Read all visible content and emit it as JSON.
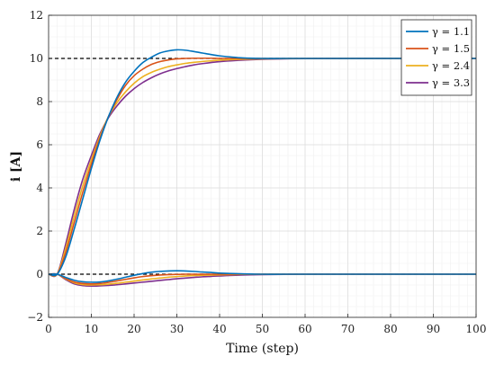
{
  "chart_data": {
    "type": "line",
    "xlabel": "Time (step)",
    "ylabel": "i [A]",
    "xlim": [
      0,
      100
    ],
    "ylim": [
      -2,
      12
    ],
    "xticks": [
      0,
      10,
      20,
      30,
      40,
      50,
      60,
      70,
      80,
      90,
      100
    ],
    "yticks": [
      -2,
      0,
      2,
      4,
      6,
      8,
      10,
      12
    ],
    "grid": true,
    "minor_grid": true,
    "legend_position": "top-right",
    "reference_lines": [
      {
        "y": 10,
        "style": "dashed",
        "color": "#000000"
      },
      {
        "y": 0,
        "style": "dashed",
        "color": "#000000"
      }
    ],
    "series": [
      {
        "name": "γ = 1.1",
        "color": "#0072BD",
        "upper": {
          "x": [
            0,
            2,
            4,
            6,
            8,
            10,
            12,
            14,
            16,
            18,
            20,
            22,
            24,
            26,
            28,
            30,
            32,
            34,
            36,
            38,
            40,
            45,
            50,
            55,
            60,
            70,
            80,
            90,
            100
          ],
          "y": [
            0,
            0,
            0.8,
            2.1,
            3.5,
            4.9,
            6.2,
            7.3,
            8.2,
            8.9,
            9.4,
            9.8,
            10.05,
            10.25,
            10.35,
            10.4,
            10.38,
            10.32,
            10.25,
            10.18,
            10.12,
            10.03,
            10.0,
            10.0,
            10.0,
            10.0,
            10.0,
            10.0,
            10.0
          ]
        },
        "lower": {
          "x": [
            0,
            2,
            4,
            6,
            8,
            10,
            12,
            14,
            16,
            18,
            20,
            22,
            24,
            26,
            28,
            30,
            32,
            34,
            36,
            38,
            40,
            45,
            50,
            55,
            60,
            70,
            80,
            90,
            100
          ],
          "y": [
            0,
            0,
            -0.15,
            -0.28,
            -0.35,
            -0.37,
            -0.36,
            -0.31,
            -0.23,
            -0.14,
            -0.05,
            0.03,
            0.09,
            0.13,
            0.15,
            0.16,
            0.15,
            0.13,
            0.1,
            0.08,
            0.05,
            0.02,
            0.0,
            0.0,
            0.0,
            0.0,
            0.0,
            0.0,
            0.0
          ]
        }
      },
      {
        "name": "γ = 1.5",
        "color": "#D95319",
        "upper": {
          "x": [
            0,
            2,
            4,
            6,
            8,
            10,
            12,
            14,
            16,
            18,
            20,
            22,
            24,
            26,
            28,
            30,
            32,
            34,
            36,
            38,
            40,
            45,
            50,
            55,
            60,
            70,
            80,
            90,
            100
          ],
          "y": [
            0,
            0,
            1.0,
            2.4,
            3.8,
            5.1,
            6.3,
            7.3,
            8.1,
            8.75,
            9.2,
            9.5,
            9.72,
            9.85,
            9.93,
            9.98,
            10.0,
            10.01,
            10.01,
            10.01,
            10.0,
            10.0,
            10.0,
            10.0,
            10.0,
            10.0,
            10.0,
            10.0,
            10.0
          ]
        },
        "lower": {
          "x": [
            0,
            2,
            4,
            6,
            8,
            10,
            12,
            14,
            16,
            18,
            20,
            22,
            24,
            26,
            28,
            30,
            32,
            34,
            36,
            38,
            40,
            45,
            50,
            55,
            60,
            70,
            80,
            90,
            100
          ],
          "y": [
            0,
            0,
            -0.2,
            -0.36,
            -0.43,
            -0.45,
            -0.43,
            -0.38,
            -0.31,
            -0.24,
            -0.17,
            -0.11,
            -0.07,
            -0.04,
            -0.02,
            -0.01,
            0.0,
            0.0,
            0.0,
            0.0,
            0.0,
            0.0,
            0.0,
            0.0,
            0.0,
            0.0,
            0.0,
            0.0,
            0.0
          ]
        }
      },
      {
        "name": "γ = 2.4",
        "color": "#EDB120",
        "upper": {
          "x": [
            0,
            2,
            4,
            6,
            8,
            10,
            12,
            14,
            16,
            18,
            20,
            22,
            24,
            26,
            28,
            30,
            32,
            34,
            36,
            38,
            40,
            45,
            50,
            55,
            60,
            70,
            80,
            90,
            100
          ],
          "y": [
            0,
            0,
            1.2,
            2.7,
            4.1,
            5.3,
            6.4,
            7.3,
            7.95,
            8.45,
            8.85,
            9.15,
            9.35,
            9.5,
            9.62,
            9.7,
            9.77,
            9.82,
            9.86,
            9.89,
            9.92,
            9.96,
            9.98,
            9.99,
            10.0,
            10.0,
            10.0,
            10.0,
            10.0
          ]
        },
        "lower": {
          "x": [
            0,
            2,
            4,
            6,
            8,
            10,
            12,
            14,
            16,
            18,
            20,
            22,
            24,
            26,
            28,
            30,
            32,
            34,
            36,
            38,
            40,
            45,
            50,
            55,
            60,
            70,
            80,
            90,
            100
          ],
          "y": [
            0,
            0,
            -0.22,
            -0.4,
            -0.48,
            -0.5,
            -0.49,
            -0.46,
            -0.42,
            -0.37,
            -0.32,
            -0.27,
            -0.22,
            -0.18,
            -0.14,
            -0.11,
            -0.08,
            -0.06,
            -0.05,
            -0.04,
            -0.03,
            -0.01,
            0.0,
            0.0,
            0.0,
            0.0,
            0.0,
            0.0,
            0.0
          ]
        }
      },
      {
        "name": "γ = 3.3",
        "color": "#7E2F8E",
        "upper": {
          "x": [
            0,
            2,
            4,
            6,
            8,
            10,
            12,
            14,
            16,
            18,
            20,
            22,
            24,
            26,
            28,
            30,
            32,
            34,
            36,
            38,
            40,
            45,
            50,
            55,
            60,
            70,
            80,
            90,
            100
          ],
          "y": [
            0,
            0,
            1.4,
            3.0,
            4.4,
            5.5,
            6.5,
            7.25,
            7.8,
            8.25,
            8.6,
            8.88,
            9.1,
            9.28,
            9.42,
            9.53,
            9.62,
            9.7,
            9.76,
            9.81,
            9.85,
            9.92,
            9.96,
            9.98,
            9.99,
            10.0,
            10.0,
            10.0,
            10.0
          ]
        },
        "lower": {
          "x": [
            0,
            2,
            4,
            6,
            8,
            10,
            12,
            14,
            16,
            18,
            20,
            22,
            24,
            26,
            28,
            30,
            32,
            34,
            36,
            38,
            40,
            45,
            50,
            55,
            60,
            70,
            80,
            90,
            100
          ],
          "y": [
            0,
            0,
            -0.25,
            -0.45,
            -0.53,
            -0.55,
            -0.54,
            -0.52,
            -0.49,
            -0.45,
            -0.41,
            -0.37,
            -0.33,
            -0.29,
            -0.25,
            -0.21,
            -0.18,
            -0.15,
            -0.12,
            -0.1,
            -0.08,
            -0.04,
            -0.02,
            -0.01,
            0.0,
            0.0,
            0.0,
            0.0,
            0.0
          ]
        }
      }
    ]
  }
}
